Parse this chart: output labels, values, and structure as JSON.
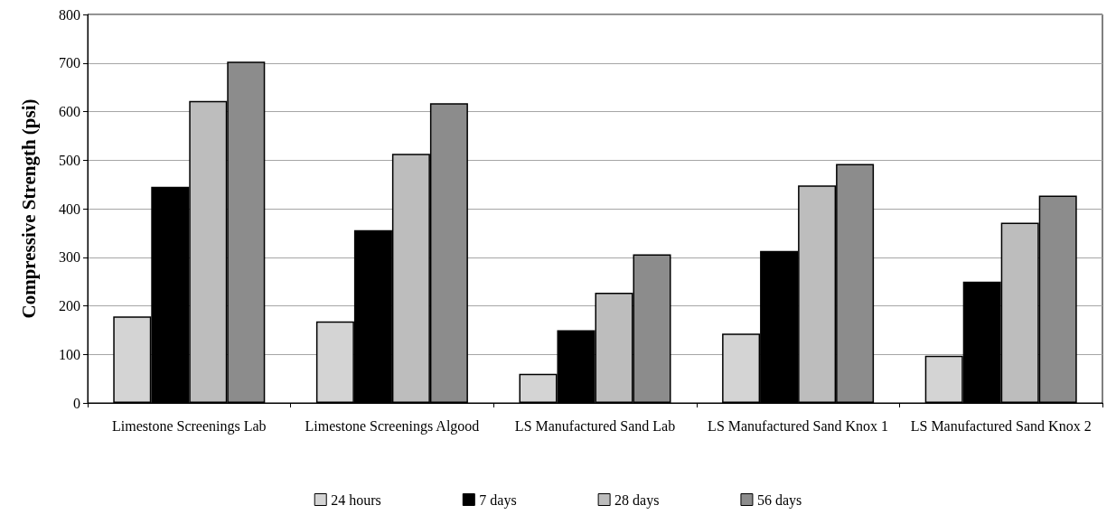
{
  "chart_data": {
    "type": "bar",
    "ylabel": "Compressive Strength (psi)",
    "categories": [
      "Limestone Screenings Lab",
      "Limestone Screenings Algood",
      "LS Manufactured Sand Lab",
      "LS Manufactured Sand Knox 1",
      "LS Manufactured Sand Knox 2"
    ],
    "series": [
      {
        "name": "24 hours",
        "color": "#d4d4d4",
        "values": [
          178,
          168,
          60,
          143,
          97
        ]
      },
      {
        "name": "7 days",
        "color": "#000000",
        "values": [
          445,
          356,
          150,
          313,
          250
        ]
      },
      {
        "name": "28 days",
        "color": "#bdbdbd",
        "values": [
          622,
          513,
          227,
          448,
          371
        ]
      },
      {
        "name": "56 days",
        "color": "#8c8c8c",
        "values": [
          703,
          617,
          306,
          492,
          427
        ]
      }
    ],
    "ylim": [
      0,
      800
    ],
    "yticks": [
      0,
      100,
      200,
      300,
      400,
      500,
      600,
      700,
      800
    ],
    "grid": "y",
    "legend": "bottom"
  }
}
